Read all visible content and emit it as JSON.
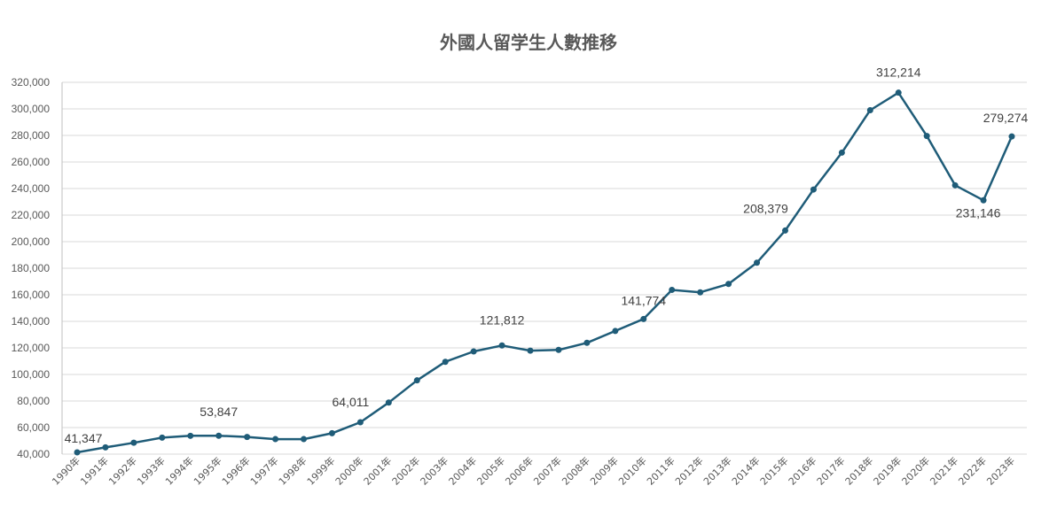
{
  "chart_data": {
    "type": "line",
    "title": "外國人留学生人數推移",
    "xlabel": "",
    "ylabel": "",
    "ylim": [
      40000,
      320000
    ],
    "ytick_step": 20000,
    "grid": true,
    "legend": "none",
    "line_color": "#1f5c78",
    "x": [
      "1990年",
      "1991年",
      "1992年",
      "1993年",
      "1994年",
      "1995年",
      "1996年",
      "1997年",
      "1998年",
      "1999年",
      "2000年",
      "2001年",
      "2002年",
      "2003年",
      "2004年",
      "2005年",
      "2006年",
      "2007年",
      "2008年",
      "2009年",
      "2010年",
      "2011年",
      "2012年",
      "2013年",
      "2014年",
      "2015年",
      "2016年",
      "2017年",
      "2018年",
      "2019年",
      "2020年",
      "2021年",
      "2022年",
      "2023年"
    ],
    "series": [
      {
        "values": [
          41347,
          45066,
          48561,
          52405,
          53787,
          53847,
          52921,
          51298,
          51298,
          55755,
          64011,
          78812,
          95550,
          109508,
          117302,
          121812,
          117927,
          118498,
          123829,
          132720,
          141774,
          163697,
          161848,
          168145,
          184155,
          208379,
          239287,
          267042,
          298980,
          312214,
          279597,
          242444,
          231146,
          279274
        ]
      }
    ],
    "labels": [
      {
        "index": 0,
        "text": "41,347"
      },
      {
        "index": 5,
        "text": "53,847"
      },
      {
        "index": 10,
        "text": "64,011"
      },
      {
        "index": 15,
        "text": "121,812"
      },
      {
        "index": 20,
        "text": "141,774"
      },
      {
        "index": 25,
        "text": "208,379"
      },
      {
        "index": 29,
        "text": "312,214"
      },
      {
        "index": 32,
        "text": "231,146"
      },
      {
        "index": 33,
        "text": "279,274"
      }
    ]
  }
}
